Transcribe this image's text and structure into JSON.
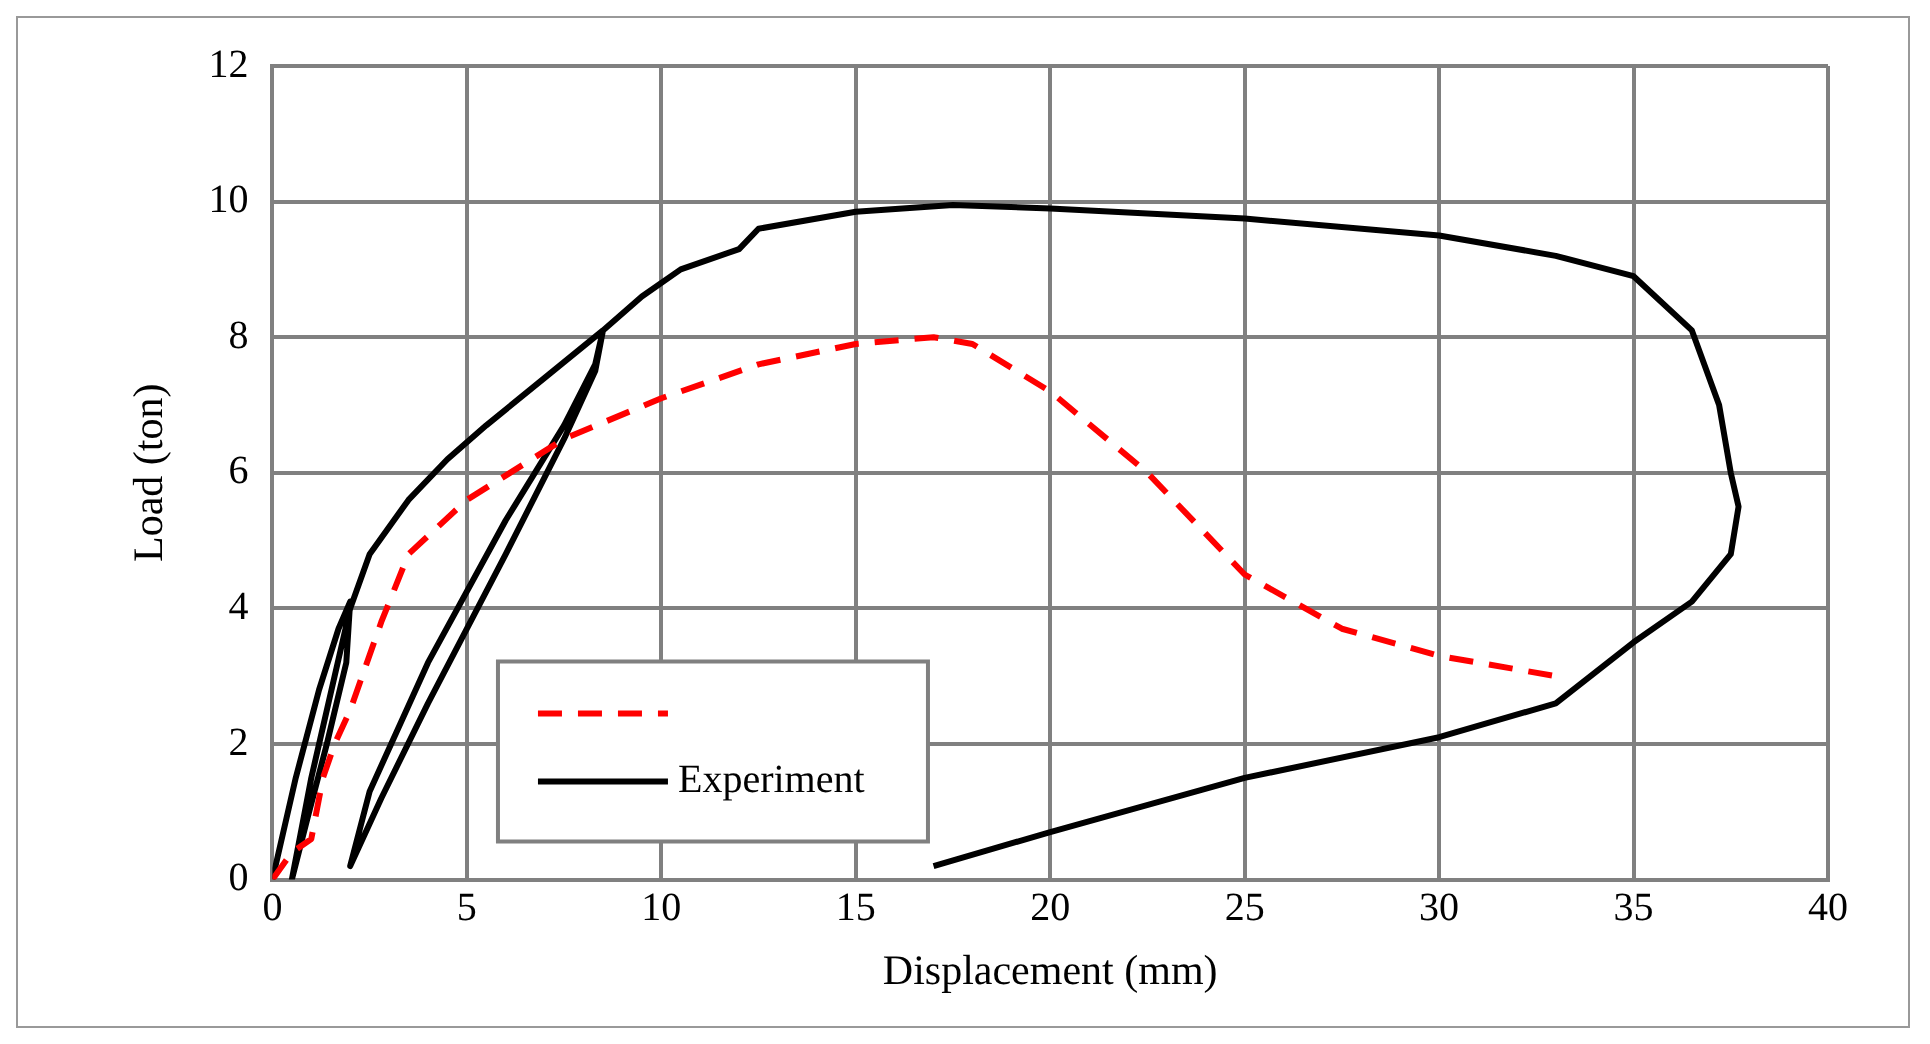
{
  "chart_data": {
    "type": "line",
    "xlabel": "Displacement (mm)",
    "ylabel": "Load (ton)",
    "xlim": [
      0,
      40
    ],
    "xticks": [
      0,
      5,
      10,
      15,
      20,
      25,
      30,
      35,
      40
    ],
    "ylim": [
      0,
      12
    ],
    "yticks": [
      0,
      2,
      4,
      6,
      8,
      10,
      12
    ],
    "grid": true,
    "legend": "bottom left",
    "marker": "none",
    "series": [
      {
        "color": "#ff0000",
        "line_style": "dashed",
        "x": [
          0,
          0.5,
          1,
          1.3,
          1.6,
          2,
          2.8,
          3.5,
          5,
          7.5,
          10,
          12.5,
          15,
          17,
          18,
          20,
          22.5,
          25,
          27.5,
          30,
          33
        ],
        "values": [
          0,
          0.4,
          0.6,
          1.5,
          2,
          2.5,
          3.8,
          4.8,
          5.6,
          6.5,
          7.1,
          7.6,
          7.9,
          8,
          7.9,
          7.2,
          6,
          4.5,
          3.7,
          3.3,
          3
        ]
      },
      {
        "name": "Experiment",
        "color": "#000000",
        "line_style": "solid",
        "x": [
          0,
          0.6,
          1.2,
          1.7,
          2,
          1.9,
          1.4,
          0.9,
          0.5,
          1,
          1.6,
          2,
          2.5,
          3.5,
          4.5,
          5.5,
          7,
          8.5,
          8.3,
          7.5,
          6,
          4,
          2.8,
          2,
          2.5,
          4,
          6,
          7.5,
          8.3,
          8.5,
          9.5,
          10.5,
          12,
          12.5,
          15,
          17.5,
          20,
          25,
          30,
          33,
          35,
          36.5,
          37.2,
          37.5,
          37.7,
          37.5,
          36.5,
          35,
          33,
          30,
          25,
          20,
          17
        ],
        "values": [
          0,
          1.5,
          2.8,
          3.7,
          4.1,
          3.2,
          2,
          0.9,
          0,
          1.5,
          3,
          4,
          4.8,
          5.6,
          6.2,
          6.7,
          7.4,
          8.1,
          7.5,
          6.5,
          4.8,
          2.6,
          1.2,
          0.2,
          1.3,
          3.2,
          5.3,
          6.7,
          7.6,
          8.1,
          8.6,
          9,
          9.3,
          9.6,
          9.85,
          9.95,
          9.9,
          9.75,
          9.5,
          9.2,
          8.9,
          8.1,
          7,
          6,
          5.5,
          4.8,
          4.1,
          3.5,
          2.6,
          2.1,
          1.5,
          0.7,
          0.2
        ]
      }
    ]
  }
}
